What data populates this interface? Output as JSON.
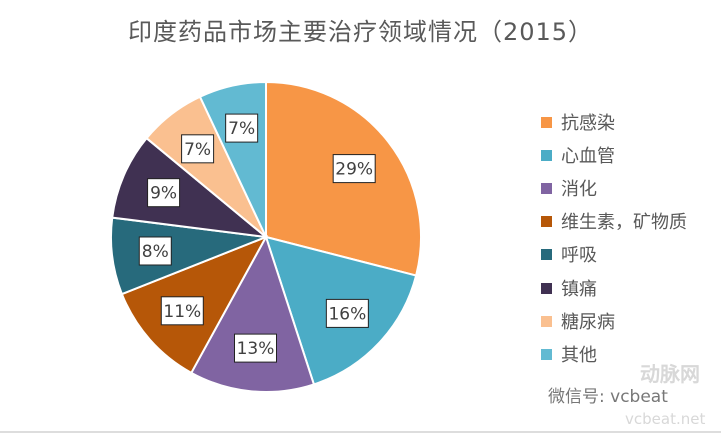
{
  "chart_data": {
    "type": "pie",
    "title": "印度药品市场主要治疗领域情况（2015）",
    "categories": [
      "抗感染",
      "心血管",
      "消化",
      "维生素，矿物质",
      "呼吸",
      "镇痛",
      "糖尿病",
      "其他"
    ],
    "values": [
      29,
      16,
      13,
      11,
      8,
      9,
      7,
      7
    ],
    "data_labels": [
      "29%",
      "16%",
      "13%",
      "11%",
      "8%",
      "9%",
      "7%",
      "7%"
    ],
    "colors": [
      "#F79646",
      "#4BACC6",
      "#8064A2",
      "#B65708",
      "#276A7C",
      "#403152",
      "#FAC090",
      "#62BAD2"
    ],
    "start_angle": "top, clockwise",
    "legend_position": "right"
  },
  "watermark": {
    "wechat": "微信号: vcbeat",
    "logo": "动脉网",
    "url": "vcbeat.net"
  }
}
